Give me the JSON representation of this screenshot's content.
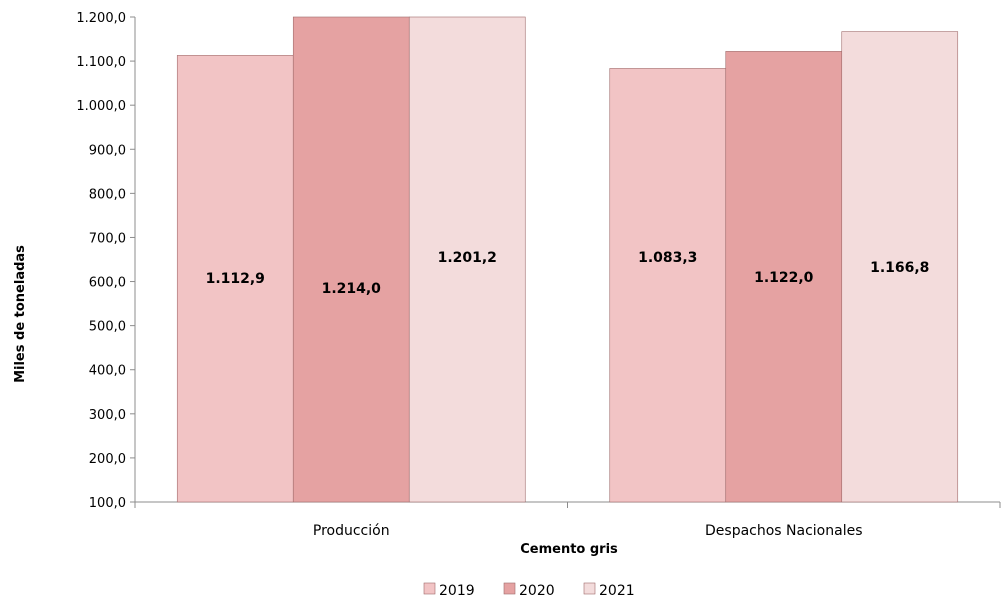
{
  "chart_data": {
    "type": "bar",
    "categories": [
      "Producción",
      "Despachos Nacionales"
    ],
    "series": [
      {
        "name": "2019",
        "values": [
          1112.9,
          1083.3
        ],
        "labels": [
          "1.112,9",
          "1.083,3"
        ],
        "color": "#f2c4c5"
      },
      {
        "name": "2020",
        "values": [
          1214.0,
          1122.0
        ],
        "labels": [
          "1.214,0",
          "1.122,0"
        ],
        "color": "#e5a2a2"
      },
      {
        "name": "2021",
        "values": [
          1201.2,
          1166.8
        ],
        "labels": [
          "1.201,2",
          "1.166,8"
        ],
        "color": "#f3dcdc"
      }
    ],
    "xlabel": "Cemento gris",
    "ylabel": "Miles de toneladas",
    "ylim": [
      100,
      1200
    ],
    "yticks": [
      100,
      200,
      300,
      400,
      500,
      600,
      700,
      800,
      900,
      1000,
      1100,
      1200
    ],
    "ytick_labels": [
      "100,0",
      "200,0",
      "300,0",
      "400,0",
      "500,0",
      "600,0",
      "700,0",
      "800,0",
      "900,0",
      "1.000,0",
      "1.100,0",
      "1.200,0"
    ],
    "grid": false,
    "legend_position": "bottom-center"
  }
}
